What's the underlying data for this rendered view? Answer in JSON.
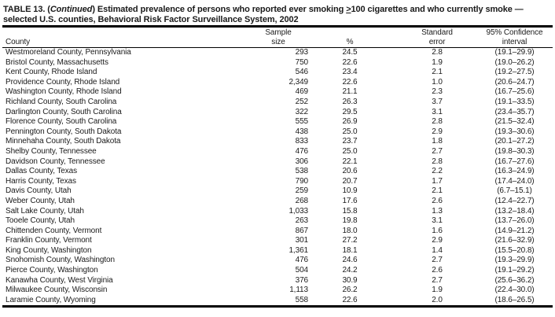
{
  "table": {
    "title": {
      "part1": "TABLE 13. (",
      "continued": "Continued",
      "part2": ") Estimated prevalence of persons who reported ever smoking ",
      "geq": ">",
      "part3": "100 cigarettes and who currently smoke —",
      "line2": "selected U.S. counties, Behavioral Risk Factor Surveillance System, 2002"
    },
    "columns": {
      "county": "County",
      "sample_line1": "Sample",
      "sample_line2": "size",
      "pct": "%",
      "se_line1": "Standard",
      "se_line2": "error",
      "ci_line1": "95% Confidence",
      "ci_line2": "interval"
    },
    "rows": [
      {
        "county": "Westmoreland County, Pennsylvania",
        "sample_size": "293",
        "pct": "24.5",
        "std_err": "2.8",
        "ci": "(19.1–29.9)"
      },
      {
        "county": "Bristol County, Massachusetts",
        "sample_size": "750",
        "pct": "22.6",
        "std_err": "1.9",
        "ci": "(19.0–26.2)"
      },
      {
        "county": "Kent County, Rhode Island",
        "sample_size": "546",
        "pct": "23.4",
        "std_err": "2.1",
        "ci": "(19.2–27.5)"
      },
      {
        "county": "Providence County, Rhode Island",
        "sample_size": "2,349",
        "pct": "22.6",
        "std_err": "1.0",
        "ci": "(20.6–24.7)"
      },
      {
        "county": "Washington County, Rhode Island",
        "sample_size": "469",
        "pct": "21.1",
        "std_err": "2.3",
        "ci": "(16.7–25.6)"
      },
      {
        "county": "Richland County, South Carolina",
        "sample_size": "252",
        "pct": "26.3",
        "std_err": "3.7",
        "ci": "(19.1–33.5)"
      },
      {
        "county": "Darlington County, South Carolina",
        "sample_size": "322",
        "pct": "29.5",
        "std_err": "3.1",
        "ci": "(23.4–35.7)"
      },
      {
        "county": "Florence County, South Carolina",
        "sample_size": "555",
        "pct": "26.9",
        "std_err": "2.8",
        "ci": "(21.5–32.4)"
      },
      {
        "county": "Pennington County, South Dakota",
        "sample_size": "438",
        "pct": "25.0",
        "std_err": "2.9",
        "ci": "(19.3–30.6)"
      },
      {
        "county": "Minnehaha County, South Dakota",
        "sample_size": "833",
        "pct": "23.7",
        "std_err": "1.8",
        "ci": "(20.1–27.2)"
      },
      {
        "county": "Shelby County, Tennessee",
        "sample_size": "476",
        "pct": "25.0",
        "std_err": "2.7",
        "ci": "(19.8–30.3)"
      },
      {
        "county": "Davidson County, Tennessee",
        "sample_size": "306",
        "pct": "22.1",
        "std_err": "2.8",
        "ci": "(16.7–27.6)"
      },
      {
        "county": "Dallas County, Texas",
        "sample_size": "538",
        "pct": "20.6",
        "std_err": "2.2",
        "ci": "(16.3–24.9)"
      },
      {
        "county": "Harris County, Texas",
        "sample_size": "790",
        "pct": "20.7",
        "std_err": "1.7",
        "ci": "(17.4–24.0)"
      },
      {
        "county": "Davis County, Utah",
        "sample_size": "259",
        "pct": "10.9",
        "std_err": "2.1",
        "ci": "(6.7–15.1)"
      },
      {
        "county": "Weber County, Utah",
        "sample_size": "268",
        "pct": "17.6",
        "std_err": "2.6",
        "ci": "(12.4–22.7)"
      },
      {
        "county": "Salt Lake County, Utah",
        "sample_size": "1,033",
        "pct": "15.8",
        "std_err": "1.3",
        "ci": "(13.2–18.4)"
      },
      {
        "county": "Tooele County, Utah",
        "sample_size": "263",
        "pct": "19.8",
        "std_err": "3.1",
        "ci": "(13.7–26.0)"
      },
      {
        "county": "Chittenden County, Vermont",
        "sample_size": "867",
        "pct": "18.0",
        "std_err": "1.6",
        "ci": "(14.9–21.2)"
      },
      {
        "county": "Franklin County, Vermont",
        "sample_size": "301",
        "pct": "27.2",
        "std_err": "2.9",
        "ci": "(21.6–32.9)"
      },
      {
        "county": "King County, Washington",
        "sample_size": "1,361",
        "pct": "18.1",
        "std_err": "1.4",
        "ci": "(15.5–20.8)"
      },
      {
        "county": "Snohomish County, Washington",
        "sample_size": "476",
        "pct": "24.6",
        "std_err": "2.7",
        "ci": "(19.3–29.9)"
      },
      {
        "county": "Pierce County, Washington",
        "sample_size": "504",
        "pct": "24.2",
        "std_err": "2.6",
        "ci": "(19.1–29.2)"
      },
      {
        "county": "Kanawha County, West Virginia",
        "sample_size": "376",
        "pct": "30.9",
        "std_err": "2.7",
        "ci": "(25.6–36.2)"
      },
      {
        "county": "Milwaukee County, Wisconsin",
        "sample_size": "1,113",
        "pct": "26.2",
        "std_err": "1.9",
        "ci": "(22.4–30.0)"
      },
      {
        "county": "Laramie County, Wyoming",
        "sample_size": "558",
        "pct": "22.6",
        "std_err": "2.0",
        "ci": "(18.6–26.5)"
      }
    ]
  }
}
